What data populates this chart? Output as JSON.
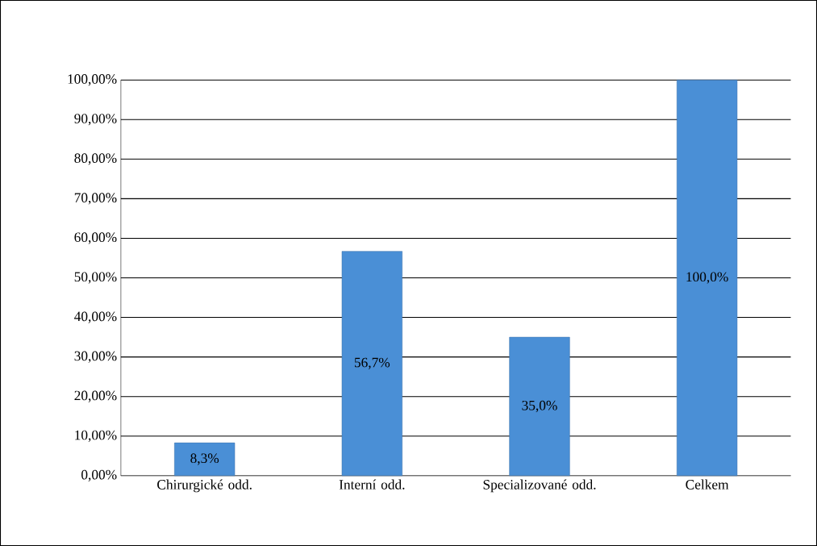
{
  "chart_data": {
    "type": "bar",
    "categories": [
      "Chirurgické odd.",
      "Interní odd.",
      "Specializované odd.",
      "Celkem"
    ],
    "values": [
      8.3,
      56.7,
      35.0,
      100.0
    ],
    "value_labels": [
      "8,3%",
      "56,7%",
      "35,0%",
      "100,0%"
    ],
    "color": "#4a8fd6",
    "ylim": [
      0,
      100
    ],
    "yticks": [
      {
        "value": 0,
        "label": "0,00%"
      },
      {
        "value": 10,
        "label": "10,00%"
      },
      {
        "value": 20,
        "label": "20,00%"
      },
      {
        "value": 30,
        "label": "30,00%"
      },
      {
        "value": 40,
        "label": "40,00%"
      },
      {
        "value": 50,
        "label": "50,00%"
      },
      {
        "value": 60,
        "label": "60,00%"
      },
      {
        "value": 70,
        "label": "70,00%"
      },
      {
        "value": 80,
        "label": "80,00%"
      },
      {
        "value": 90,
        "label": "90,00%"
      },
      {
        "value": 100,
        "label": "100,00%"
      }
    ],
    "grid": "y"
  }
}
